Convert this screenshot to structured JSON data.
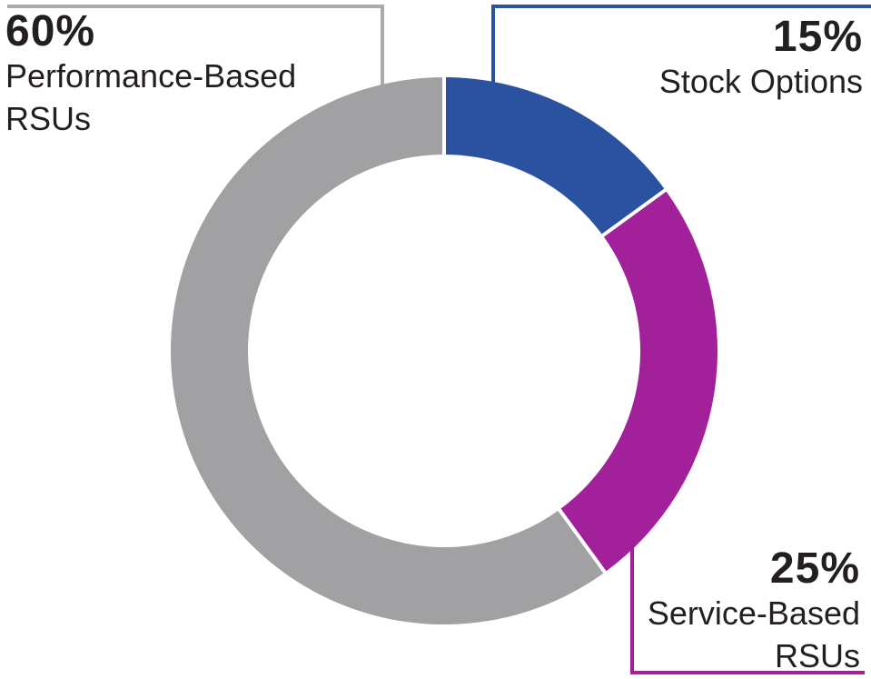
{
  "chart_data": {
    "type": "pie",
    "subtype": "donut",
    "title": "",
    "direction": "clockwise",
    "start_angle_deg": 0,
    "gap_color": "#FFFFFF",
    "segments": [
      {
        "label": "Stock Options",
        "value": 15,
        "color": "#2B52A0",
        "leader_color": "#2B52A0"
      },
      {
        "label": "Service-Based RSUs",
        "value": 25,
        "color": "#A2219A",
        "leader_color": "#A2219A"
      },
      {
        "label": "Performance-Based RSUs",
        "value": 60,
        "color": "#A1A1A3",
        "leader_color": "#A9ABAE"
      }
    ]
  },
  "labels": {
    "performance": {
      "pct": "60%",
      "line1": "Performance-Based",
      "line2": "RSUs"
    },
    "stock": {
      "pct": "15%",
      "line1": "Stock Options"
    },
    "service": {
      "pct": "25%",
      "line1": "Service-Based",
      "line2": "RSUs"
    }
  },
  "colors": {
    "text": "#231F20",
    "background": "#FFFFFF"
  }
}
